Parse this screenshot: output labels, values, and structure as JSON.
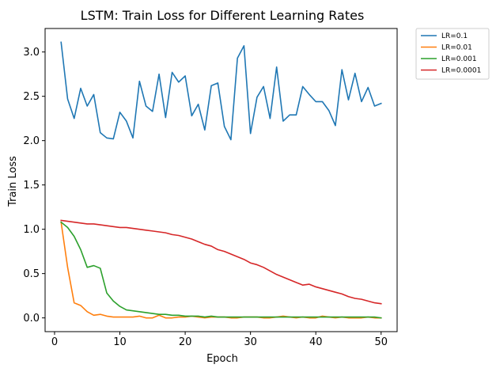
{
  "chart_data": {
    "type": "line",
    "title": "LSTM: Train Loss for Different Learning Rates",
    "xlabel": "Epoch",
    "ylabel": "Train Loss",
    "xlim": [
      -1.45,
      52.45
    ],
    "ylim": [
      -0.155,
      3.265
    ],
    "xticks": [
      0,
      10,
      20,
      30,
      40,
      50
    ],
    "yticks": [
      0.0,
      0.5,
      1.0,
      1.5,
      2.0,
      2.5,
      3.0
    ],
    "ytick_labels": [
      "0.0",
      "0.5",
      "1.0",
      "1.5",
      "2.0",
      "2.5",
      "3.0"
    ],
    "grid": false,
    "legend_position": "outside upper right",
    "x": [
      1,
      2,
      3,
      4,
      5,
      6,
      7,
      8,
      9,
      10,
      11,
      12,
      13,
      14,
      15,
      16,
      17,
      18,
      19,
      20,
      21,
      22,
      23,
      24,
      25,
      26,
      27,
      28,
      29,
      30,
      31,
      32,
      33,
      34,
      35,
      36,
      37,
      38,
      39,
      40,
      41,
      42,
      43,
      44,
      45,
      46,
      47,
      48,
      49,
      50
    ],
    "series": [
      {
        "name": "LR=0.1",
        "color": "#1f77b4",
        "values": [
          3.11,
          2.47,
          2.25,
          2.59,
          2.39,
          2.52,
          2.09,
          2.03,
          2.02,
          2.32,
          2.22,
          2.03,
          2.67,
          2.39,
          2.33,
          2.75,
          2.26,
          2.77,
          2.66,
          2.73,
          2.28,
          2.41,
          2.12,
          2.62,
          2.65,
          2.16,
          2.01,
          2.93,
          3.07,
          2.08,
          2.49,
          2.61,
          2.25,
          2.83,
          2.22,
          2.29,
          2.29,
          2.61,
          2.52,
          2.44,
          2.44,
          2.34,
          2.17,
          2.8,
          2.46,
          2.76,
          2.44,
          2.6,
          2.39,
          2.42
        ]
      },
      {
        "name": "LR=0.01",
        "color": "#ff7f0e",
        "values": [
          1.08,
          0.57,
          0.17,
          0.14,
          0.07,
          0.03,
          0.04,
          0.02,
          0.01,
          0.01,
          0.01,
          0.01,
          0.02,
          0.0,
          0.0,
          0.03,
          0.0,
          0.0,
          0.01,
          0.01,
          0.02,
          0.01,
          0.0,
          0.01,
          0.01,
          0.01,
          0.0,
          0.0,
          0.01,
          0.01,
          0.01,
          0.0,
          0.0,
          0.01,
          0.02,
          0.01,
          0.0,
          0.01,
          0.0,
          0.0,
          0.02,
          0.01,
          0.0,
          0.01,
          0.0,
          0.0,
          0.0,
          0.01,
          0.0,
          0.0
        ]
      },
      {
        "name": "LR=0.001",
        "color": "#2ca02c",
        "values": [
          1.08,
          1.02,
          0.92,
          0.77,
          0.57,
          0.59,
          0.56,
          0.28,
          0.19,
          0.13,
          0.09,
          0.08,
          0.07,
          0.06,
          0.05,
          0.04,
          0.04,
          0.03,
          0.03,
          0.02,
          0.02,
          0.02,
          0.01,
          0.02,
          0.01,
          0.01,
          0.01,
          0.01,
          0.01,
          0.01,
          0.01,
          0.01,
          0.01,
          0.01,
          0.01,
          0.01,
          0.01,
          0.01,
          0.01,
          0.01,
          0.01,
          0.01,
          0.01,
          0.01,
          0.01,
          0.01,
          0.01,
          0.01,
          0.01,
          0.0
        ]
      },
      {
        "name": "LR=0.0001",
        "color": "#d62728",
        "values": [
          1.1,
          1.09,
          1.08,
          1.07,
          1.06,
          1.06,
          1.05,
          1.04,
          1.03,
          1.02,
          1.02,
          1.01,
          1.0,
          0.99,
          0.98,
          0.97,
          0.96,
          0.94,
          0.93,
          0.91,
          0.89,
          0.86,
          0.83,
          0.81,
          0.77,
          0.75,
          0.72,
          0.69,
          0.66,
          0.62,
          0.6,
          0.57,
          0.53,
          0.49,
          0.46,
          0.43,
          0.4,
          0.37,
          0.38,
          0.35,
          0.33,
          0.31,
          0.29,
          0.27,
          0.24,
          0.22,
          0.21,
          0.19,
          0.17,
          0.16
        ]
      }
    ]
  }
}
